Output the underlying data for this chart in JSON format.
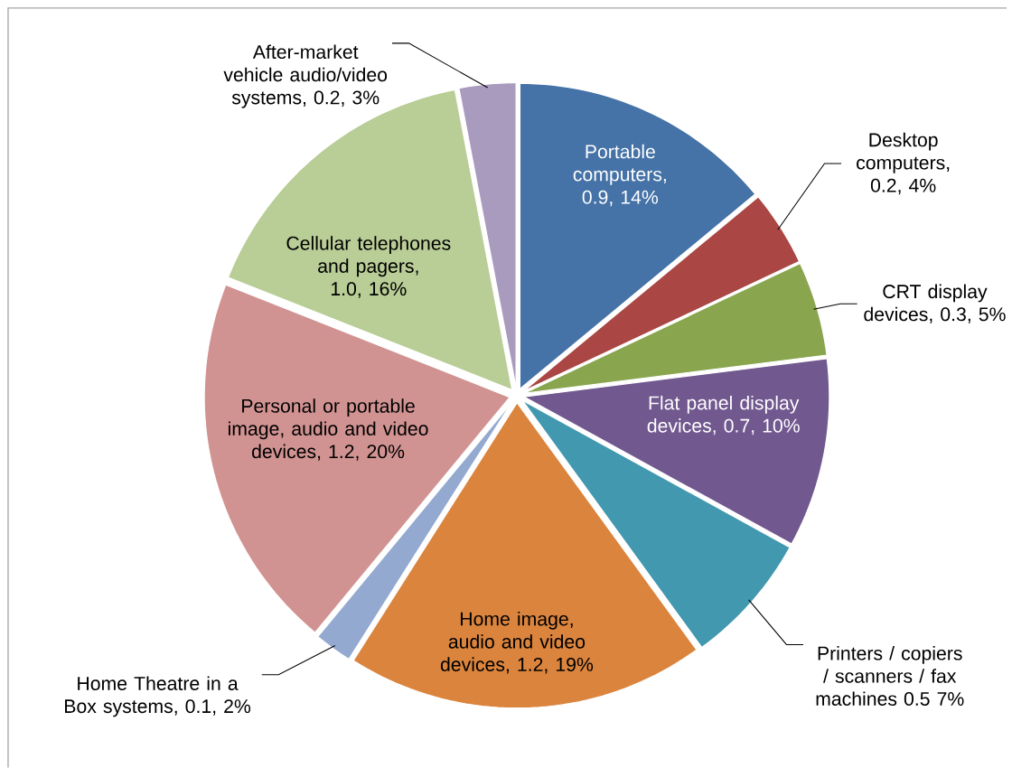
{
  "chart_data": {
    "type": "pie",
    "categories": [
      "Portable computers, 0.9, 14%",
      "Desktop computers, 0.2, 4%",
      "CRT display devices, 0.3, 5%",
      "Flat panel display devices, 0.7, 10%",
      "Printers / copiers / scanners / fax machines 0.5 7%",
      "Home image, audio and video devices, 1.2, 19%",
      "Home Theatre in a Box systems, 0.1, 2%",
      "Personal or portable image, audio and video devices, 1.2, 20%",
      "Cellular telephones and pagers, 1.0, 16%",
      "After-market vehicle audio/video systems, 0.2, 3%"
    ],
    "values": [
      14,
      4,
      5,
      10,
      7,
      19,
      2,
      20,
      16,
      3
    ],
    "colors": [
      "#4572a7",
      "#aa4643",
      "#89a54e",
      "#71588f",
      "#4198af",
      "#db843d",
      "#93a9cf",
      "#d19392",
      "#b9cd96",
      "#a99bbd"
    ]
  }
}
